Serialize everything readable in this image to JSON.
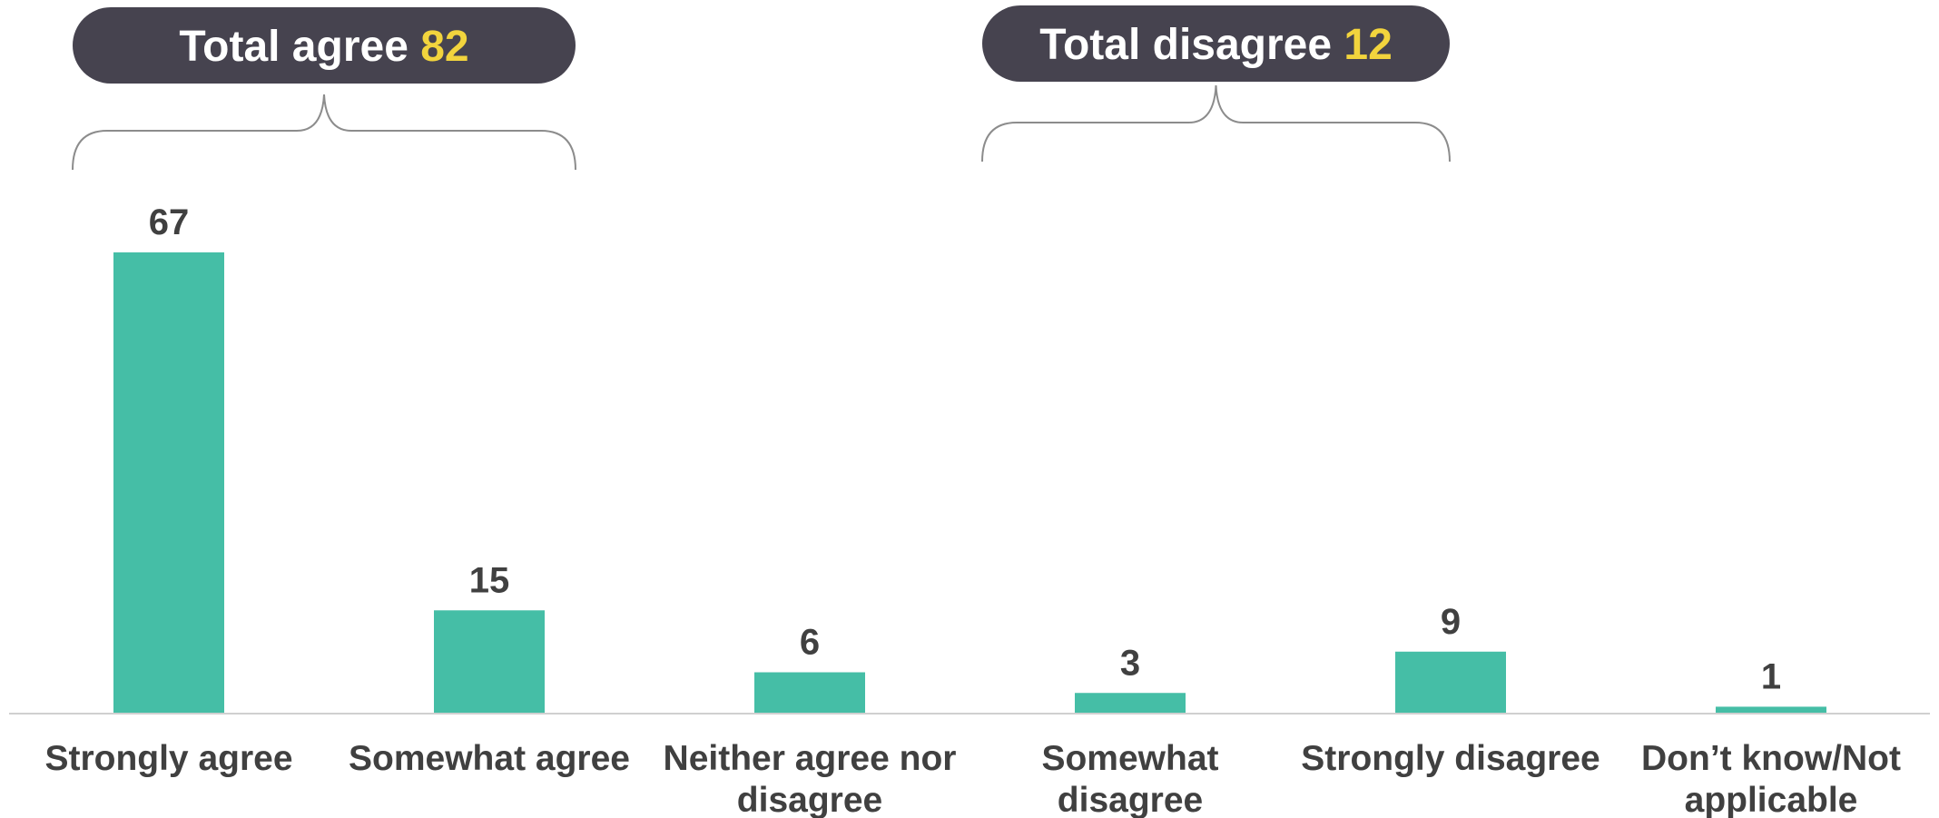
{
  "chart_data": {
    "type": "bar",
    "title": "",
    "xlabel": "",
    "ylabel": "",
    "ylim": [
      0,
      67
    ],
    "grid": false,
    "categories": [
      [
        "Strongly agree"
      ],
      [
        "Somewhat agree"
      ],
      [
        "Neither agree nor",
        "disagree"
      ],
      [
        "Somewhat",
        "disagree"
      ],
      [
        "Strongly disagree"
      ],
      [
        "Don’t know/Not",
        "applicable"
      ]
    ],
    "values": [
      67,
      15,
      6,
      3,
      9,
      1
    ],
    "bar_color": "#45bea6",
    "annotations": [
      {
        "label": "Total agree",
        "value": "82",
        "spans_categories": [
          0,
          1
        ]
      },
      {
        "label": "Total disagree",
        "value": "12",
        "spans_categories": [
          3,
          4
        ]
      }
    ],
    "colors": {
      "bar": "#45bea6",
      "summary_pill": "#46434f",
      "summary_value": "#f2d43d",
      "text": "#404040"
    }
  }
}
